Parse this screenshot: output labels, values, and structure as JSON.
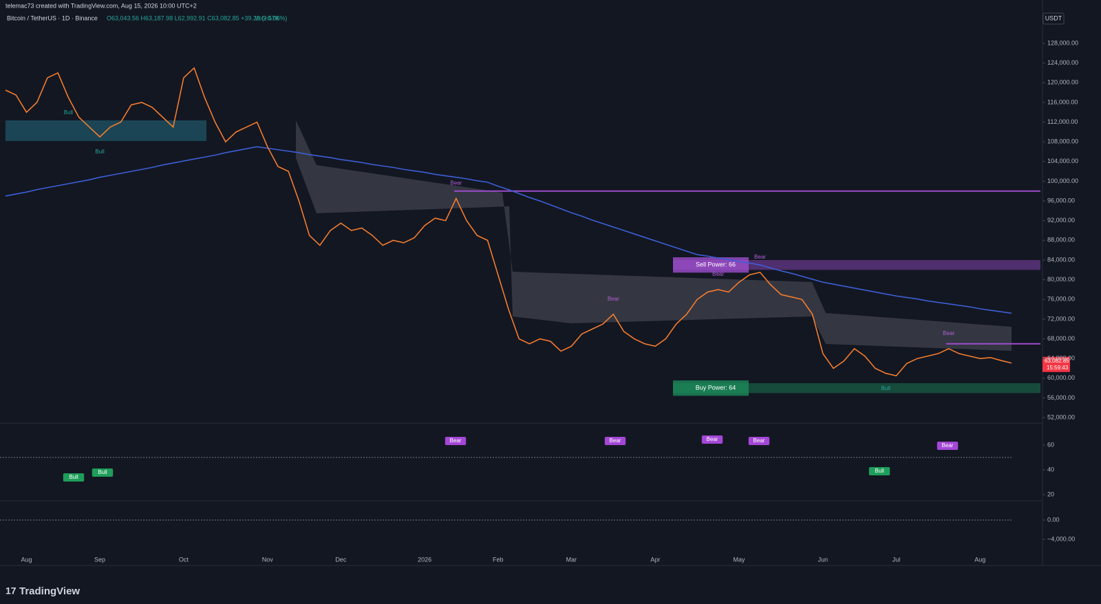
{
  "header": {
    "credit": "telemac73 created with TradingView.com, Aug 15, 2026 10:00 UTC+2",
    "symbol": "Bitcoin / TetherUS · 1D · Binance",
    "ohlc": "O63,043.56 H63,187.98 L62,992.91 C63,082.85 +39.29 (+0.06%)",
    "volume": "Vol2.57K",
    "currency": "USDT"
  },
  "footer": {
    "logo": "TradingView"
  },
  "chart_data": [
    {
      "type": "line",
      "categories": [
        null,
        null,
        "Aug",
        null,
        null,
        null,
        null,
        null,
        null,
        "Sep",
        null,
        null,
        null,
        null,
        null,
        null,
        null,
        "Oct",
        null,
        null,
        null,
        null,
        null,
        null,
        null,
        "Nov",
        null,
        null,
        null,
        null,
        null,
        null,
        "Dec",
        null,
        null,
        null,
        null,
        null,
        null,
        null,
        "2026",
        null,
        null,
        null,
        null,
        null,
        null,
        "Feb",
        null,
        null,
        null,
        null,
        null,
        null,
        "Mar",
        null,
        null,
        null,
        null,
        null,
        null,
        null,
        "Apr",
        null,
        null,
        null,
        null,
        null,
        null,
        null,
        "May",
        null,
        null,
        null,
        null,
        null,
        null,
        null,
        "Jun",
        null,
        null,
        null,
        null,
        null,
        null,
        "Jul",
        null,
        null,
        null,
        null,
        null,
        null,
        null,
        "Aug",
        null,
        null,
        null
      ],
      "values": [
        118500,
        117500,
        114000,
        116000,
        121000,
        122000,
        117000,
        113000,
        111000,
        109000,
        111000,
        112000,
        115500,
        116000,
        115000,
        113000,
        111000,
        121000,
        123000,
        117000,
        112000,
        108000,
        110000,
        111000,
        112000,
        107000,
        103000,
        102000,
        96000,
        89000,
        87000,
        90000,
        91500,
        90000,
        90500,
        89000,
        87000,
        88000,
        87500,
        88500,
        91000,
        92500,
        92000,
        96500,
        92000,
        89000,
        88000,
        81000,
        74000,
        68000,
        67000,
        68000,
        67500,
        65500,
        66500,
        69000,
        70000,
        71000,
        73000,
        69500,
        68000,
        67000,
        66500,
        68000,
        71000,
        73000,
        76000,
        77500,
        78000,
        77500,
        79500,
        81000,
        81500,
        79000,
        77000,
        76500,
        76000,
        73000,
        65000,
        62000,
        63500,
        66000,
        64500,
        62000,
        61000,
        60500,
        63000,
        64000,
        64500,
        65000,
        66000,
        65000,
        64500,
        64000,
        64200,
        63600,
        63082.85
      ],
      "color": "#f57c2e",
      "moving_average": {
        "color": "#3d5fd6",
        "values": [
          97000,
          97400,
          97800,
          98300,
          98700,
          99100,
          99500,
          99900,
          100300,
          100800,
          101200,
          101600,
          102000,
          102400,
          102800,
          103300,
          103700,
          104100,
          104500,
          104900,
          105300,
          105800,
          106200,
          106600,
          107000,
          106700,
          106400,
          106100,
          105800,
          105400,
          105100,
          104800,
          104400,
          104100,
          103800,
          103400,
          103100,
          102800,
          102400,
          102100,
          101800,
          101400,
          101100,
          100800,
          100500,
          100100,
          99800,
          99000,
          98300,
          97500,
          96700,
          96000,
          95200,
          94400,
          93600,
          92900,
          92100,
          91400,
          90700,
          90000,
          89300,
          88600,
          87900,
          87200,
          86500,
          85800,
          85100,
          84800,
          84400,
          84100,
          83700,
          83400,
          83000,
          82400,
          81800,
          81300,
          80700,
          80100,
          79500,
          79100,
          78700,
          78300,
          77900,
          77500,
          77100,
          76700,
          76400,
          76100,
          75700,
          75400,
          75100,
          74800,
          74500,
          74100,
          73800,
          73500,
          73200
        ]
      },
      "ylim": [
        50900,
        134000
      ],
      "yticks": [
        {
          "value": 52000,
          "label": "52,000.00"
        },
        {
          "value": 56000,
          "label": "56,000.00"
        },
        {
          "value": 60000,
          "label": "60,000.00"
        },
        {
          "value": 64000,
          "label": "64,000.00"
        },
        {
          "value": 68000,
          "label": "68,000.00"
        },
        {
          "value": 72000,
          "label": "72,000.00"
        },
        {
          "value": 76000,
          "label": "76,000.00"
        },
        {
          "value": 80000,
          "label": "80,000.00"
        },
        {
          "value": 84000,
          "label": "84,000.00"
        },
        {
          "value": 88000,
          "label": "88,000.00"
        },
        {
          "value": 92000,
          "label": "92,000.00"
        },
        {
          "value": 96000,
          "label": "96,000.00"
        },
        {
          "value": 100000,
          "label": "100,000.00"
        },
        {
          "value": 104000,
          "label": "104,000.00"
        },
        {
          "value": 108000,
          "label": "108,000.00"
        },
        {
          "value": 112000,
          "label": "112,000.00"
        },
        {
          "value": 116000,
          "label": "116,000.00"
        },
        {
          "value": 120000,
          "label": "120,000.00"
        },
        {
          "value": 124000,
          "label": "124,000.00"
        },
        {
          "value": 128000,
          "label": "128,000.00"
        }
      ],
      "levels": [
        {
          "value": 98000,
          "color": "#9c4dcc"
        },
        {
          "value": 67000,
          "color": "#9c4dcc"
        }
      ],
      "zones": [
        {
          "label": "Sell Power: 66",
          "range": [
            82000,
            84000
          ],
          "color": "#9c4dcc"
        },
        {
          "label": "Buy Power: 64",
          "range": [
            57000,
            59000
          ],
          "color": "#1b8a5a"
        }
      ],
      "last_price": {
        "value": 63082.85,
        "label": "63,082.85"
      },
      "countdown": "15:59:43",
      "annotations": [
        "Bull",
        "Bull",
        "Bear",
        "Bear",
        "Bear",
        "Bear",
        "Bull",
        "Bear"
      ]
    },
    {
      "type": "oscillator",
      "ylim": [
        15,
        75
      ],
      "yticks": [
        20,
        40,
        60
      ],
      "annotations": [
        "Bull",
        "Bull",
        "Bear",
        "Bear",
        "Bear",
        "Bear",
        "Bull",
        "Bear"
      ]
    },
    {
      "type": "macd",
      "ylim": [
        -9430,
        3714
      ],
      "yticks": [
        {
          "value": 0,
          "label": "0.00"
        },
        {
          "value": -4000,
          "label": "−4,000.00"
        }
      ]
    }
  ]
}
